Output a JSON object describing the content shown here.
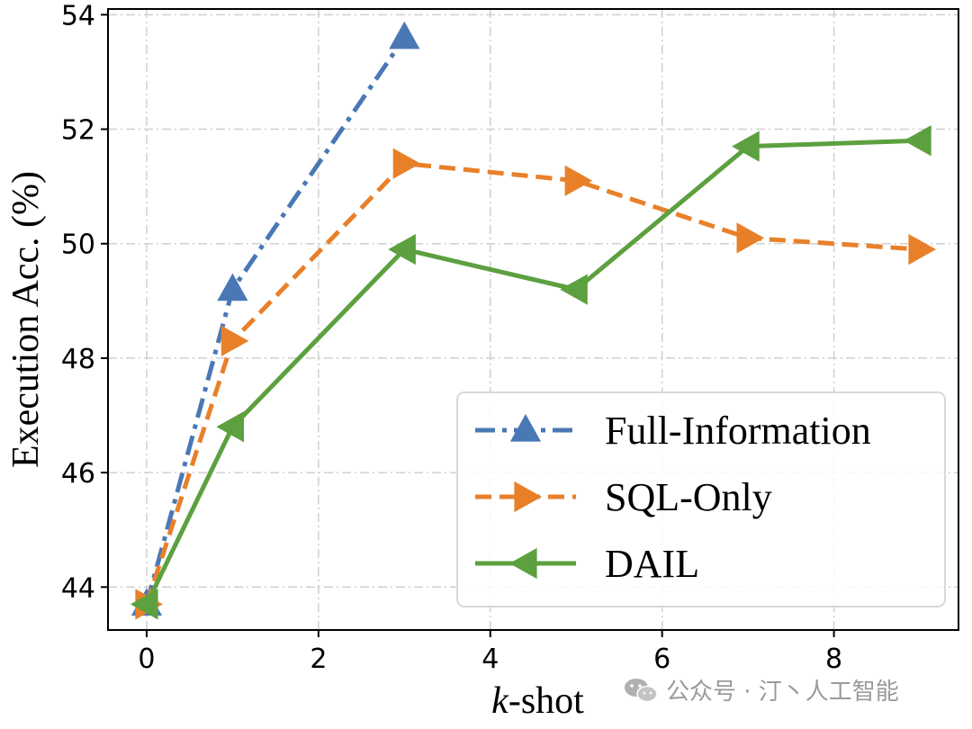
{
  "chart_data": {
    "type": "line",
    "xlabel_prefix": "k",
    "xlabel_suffix": "-shot",
    "ylabel": "Execution Acc. (%)",
    "xlim": [
      -0.45,
      9.45
    ],
    "ylim": [
      43.25,
      54.1
    ],
    "xticks": [
      "0",
      "2",
      "4",
      "6",
      "8"
    ],
    "xtick_values": [
      0,
      2,
      4,
      6,
      8
    ],
    "yticks": [
      "44",
      "46",
      "48",
      "50",
      "52",
      "54"
    ],
    "ytick_values": [
      44,
      46,
      48,
      50,
      52,
      54
    ],
    "grid": true,
    "legend_position": "lower-right",
    "series": [
      {
        "name": "Full-Information",
        "color": "#4a78b5",
        "dash": "dashdot",
        "marker": "triangle-up",
        "x": [
          0,
          1,
          3
        ],
        "y": [
          43.7,
          49.2,
          53.6
        ]
      },
      {
        "name": "SQL-Only",
        "color": "#e8802a",
        "dash": "dashed",
        "marker": "triangle-right",
        "x": [
          0,
          1,
          3,
          5,
          7,
          9
        ],
        "y": [
          43.7,
          48.3,
          51.4,
          51.1,
          50.1,
          49.9
        ]
      },
      {
        "name": "DAIL",
        "color": "#5ca03f",
        "dash": "solid",
        "marker": "triangle-left",
        "x": [
          0,
          1,
          3,
          5,
          7,
          9
        ],
        "y": [
          43.7,
          46.8,
          49.9,
          49.2,
          51.7,
          51.8
        ]
      }
    ]
  },
  "watermark": {
    "icon": "wechat-icon",
    "text": "公众号 · 汀丶人工智能"
  }
}
